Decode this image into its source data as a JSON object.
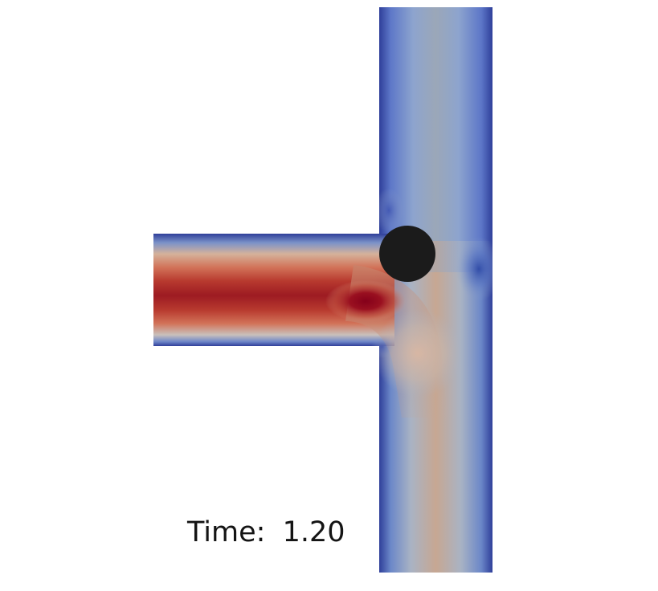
{
  "time_annotation": {
    "prefix": "Time:",
    "value": "1.20"
  },
  "colormap": {
    "low": "#3b4cc0",
    "mid": "#dddddd",
    "high": "#b40426",
    "peak": "#8b0016"
  },
  "obstacle_color": "#1b1b1b",
  "background_color": "#ffffff"
}
